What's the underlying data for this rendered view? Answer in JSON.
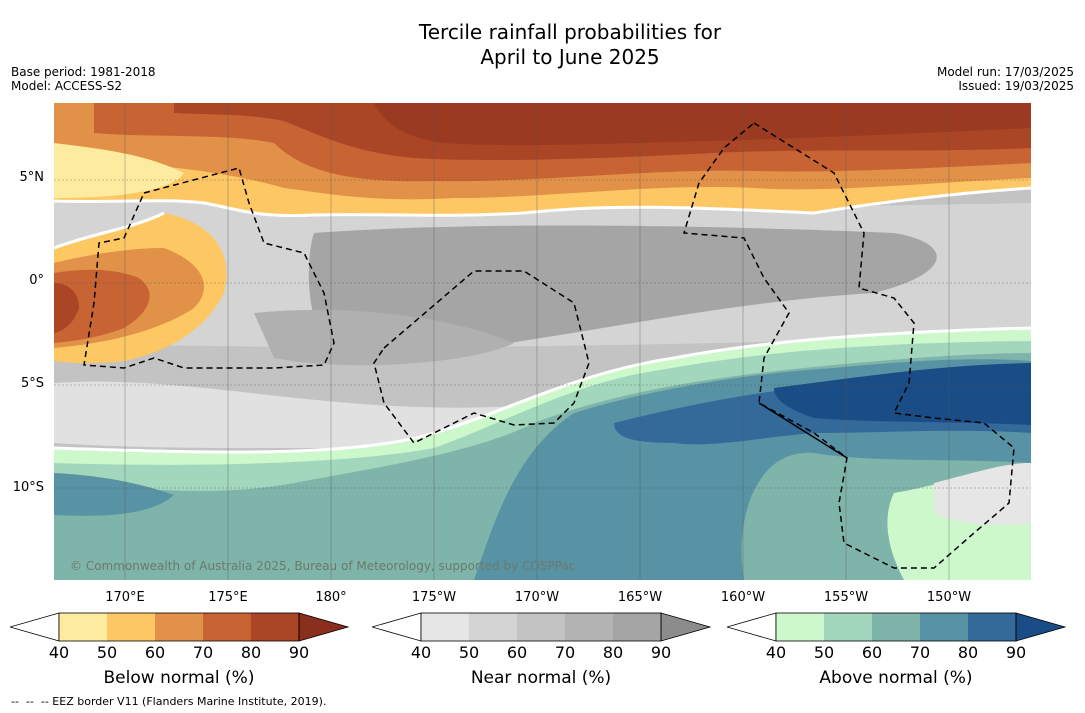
{
  "title_line1": "Tercile rainfall probabilities for",
  "title_line2": "April to June 2025",
  "meta_left": {
    "base_period": "Base period: 1981-2018",
    "model": "Model: ACCESS-S2"
  },
  "meta_right": {
    "model_run": "Model run: 17/03/2025",
    "issued": "Issued: 19/03/2025"
  },
  "credit": "© Commonwealth of Australia 2025, Bureau of Meteorology, supported by COSPPac",
  "footnote": "--  --  -- EEZ border V11 (Flanders Marine Institute, 2019).",
  "map": {
    "lat_labels": [
      "5°N",
      "0°",
      "5°S",
      "10°S"
    ],
    "lon_labels": [
      "170°E",
      "175°E",
      "180°",
      "175°W",
      "170°W",
      "165°W",
      "160°W",
      "155°W",
      "150°W"
    ],
    "projection_extent": {
      "lon_min_E": 166.2,
      "lon_max_E": 213.7,
      "lat_min": -14.3,
      "lat_max": 8.5
    },
    "gridlines": true
  },
  "colorbars": [
    {
      "label": "Below normal (%)",
      "ticks": [
        "40",
        "50",
        "60",
        "70",
        "80",
        "90"
      ],
      "colors": [
        "#ffffff",
        "#fdeca0",
        "#fdc864",
        "#e29148",
        "#c86434",
        "#aa4626",
        "#8a2e1e"
      ]
    },
    {
      "label": "Near normal (%)",
      "ticks": [
        "40",
        "50",
        "60",
        "70",
        "80",
        "90"
      ],
      "colors": [
        "#ffffff",
        "#e6e6e6",
        "#d4d4d4",
        "#c3c3c3",
        "#b3b3b3",
        "#a5a5a5",
        "#8c8c8c"
      ]
    },
    {
      "label": "Above normal (%)",
      "ticks": [
        "40",
        "50",
        "60",
        "70",
        "80",
        "90"
      ],
      "colors": [
        "#ffffff",
        "#ccf8cc",
        "#a2d6bd",
        "#7fb4aa",
        "#5892a5",
        "#336a9a",
        "#1a4c86"
      ]
    }
  ]
}
